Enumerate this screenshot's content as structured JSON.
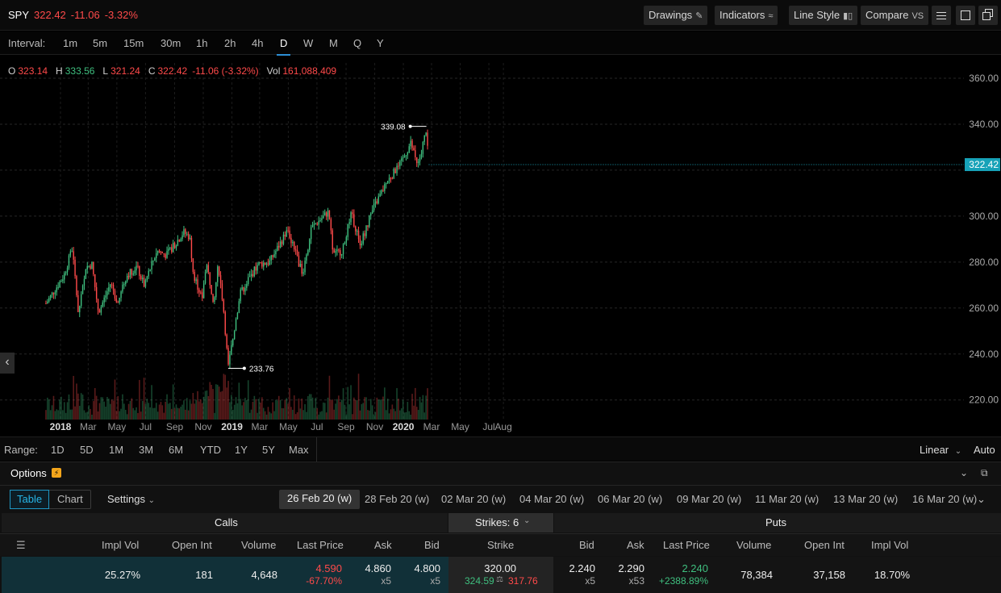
{
  "quote": {
    "symbol": "SPY",
    "price": "322.42",
    "change": "-11.06",
    "change_pct": "-3.32%"
  },
  "toolbar": {
    "drawings": "Drawings",
    "indicators": "Indicators",
    "line_style": "Line Style",
    "compare": "Compare",
    "compare_suffix": "VS"
  },
  "interval": {
    "label": "Interval:",
    "options": [
      "1m",
      "5m",
      "15m",
      "30m",
      "1h",
      "2h",
      "4h",
      "D",
      "W",
      "M",
      "Q",
      "Y"
    ],
    "active": "D"
  },
  "ohlc": {
    "o_key": "O",
    "o": "323.14",
    "h_key": "H",
    "h": "333.56",
    "l_key": "L",
    "l": "321.24",
    "c_key": "C",
    "c": "322.42",
    "chg": "-11.06 (-3.32%)",
    "vol_key": "Vol",
    "vol": "161,088,409"
  },
  "chart_data": {
    "type": "candlestick",
    "symbol": "SPY",
    "y_axis_ticks": [
      "360.00",
      "340.00",
      "300.00",
      "280.00",
      "260.00",
      "240.00",
      "220.00"
    ],
    "ylim": [
      214,
      364
    ],
    "x_axis_labels": [
      "2018",
      "Mar",
      "May",
      "Jul",
      "Sep",
      "Nov",
      "2019",
      "Mar",
      "May",
      "Jul",
      "Sep",
      "Nov",
      "2020",
      "Mar",
      "May",
      "Jul",
      "Aug"
    ],
    "close_path": [
      [
        "2017-12-01",
        262
      ],
      [
        "2017-12-20",
        268
      ],
      [
        "2018-01-08",
        274
      ],
      [
        "2018-01-26",
        286
      ],
      [
        "2018-02-08",
        258
      ],
      [
        "2018-02-26",
        278
      ],
      [
        "2018-03-09",
        279
      ],
      [
        "2018-03-23",
        258
      ],
      [
        "2018-04-18",
        271
      ],
      [
        "2018-05-03",
        262
      ],
      [
        "2018-05-21",
        274
      ],
      [
        "2018-06-12",
        278
      ],
      [
        "2018-06-28",
        270
      ],
      [
        "2018-07-25",
        285
      ],
      [
        "2018-08-15",
        283
      ],
      [
        "2018-09-20",
        293
      ],
      [
        "2018-10-03",
        291
      ],
      [
        "2018-10-11",
        275
      ],
      [
        "2018-10-29",
        264
      ],
      [
        "2018-11-07",
        280
      ],
      [
        "2018-11-23",
        263
      ],
      [
        "2018-12-03",
        279
      ],
      [
        "2018-12-14",
        260
      ],
      [
        "2018-12-24",
        234
      ],
      [
        "2019-01-18",
        266
      ],
      [
        "2019-02-25",
        279
      ],
      [
        "2019-03-22",
        280
      ],
      [
        "2019-04-30",
        294
      ],
      [
        "2019-05-31",
        275
      ],
      [
        "2019-06-20",
        295
      ],
      [
        "2019-07-26",
        302
      ],
      [
        "2019-08-05",
        283
      ],
      [
        "2019-08-23",
        285
      ],
      [
        "2019-09-12",
        301
      ],
      [
        "2019-10-02",
        288
      ],
      [
        "2019-10-28",
        303
      ],
      [
        "2019-11-27",
        315
      ],
      [
        "2019-12-27",
        323
      ],
      [
        "2020-01-17",
        332
      ],
      [
        "2020-01-31",
        321
      ],
      [
        "2020-02-19",
        338
      ],
      [
        "2020-02-24",
        322
      ]
    ],
    "annotations": [
      {
        "label": "339.08",
        "date": "2020-02-19",
        "value": 339.08,
        "type": "high"
      },
      {
        "label": "233.76",
        "date": "2018-12-24",
        "value": 233.76,
        "type": "low"
      }
    ],
    "last_price": "322.42"
  },
  "range": {
    "label": "Range:",
    "options": [
      "1D",
      "5D",
      "1M",
      "3M",
      "6M",
      "YTD",
      "1Y",
      "5Y",
      "Max"
    ],
    "scale": "Linear",
    "auto": "Auto"
  },
  "options": {
    "title": "Options",
    "tabs": [
      "Table",
      "Chart"
    ],
    "settings": "Settings",
    "dates": [
      "26 Feb 20 (w)",
      "28 Feb 20 (w)",
      "02 Mar 20 (w)",
      "04 Mar 20 (w)",
      "06 Mar 20 (w)",
      "09 Mar 20 (w)",
      "11 Mar 20 (w)",
      "13 Mar 20 (w)",
      "16 Mar 20 (w)"
    ],
    "calls_label": "Calls",
    "strikes_label": "Strikes: 6",
    "puts_label": "Puts",
    "call_columns": [
      "Impl Vol",
      "Open Int",
      "Volume",
      "Last Price",
      "Ask",
      "Bid"
    ],
    "strike_column": "Strike",
    "put_columns": [
      "Bid",
      "Ask",
      "Last Price",
      "Volume",
      "Open Int",
      "Impl Vol"
    ],
    "row": {
      "call_iv": "25.27%",
      "call_oi": "181",
      "call_vol": "4,648",
      "call_last": "4.590",
      "call_last_chg": "-67.70%",
      "call_ask": "4.860",
      "call_ask_size": "x5",
      "call_bid": "4.800",
      "call_bid_size": "x5",
      "strike": "320.00",
      "strike_high": "324.59",
      "strike_low": "317.76",
      "put_bid": "2.240",
      "put_bid_size": "x5",
      "put_ask": "2.290",
      "put_ask_size": "x53",
      "put_last": "2.240",
      "put_last_chg": "+2388.89%",
      "put_vol": "78,384",
      "put_oi": "37,158",
      "put_iv": "18.70%"
    }
  },
  "colors": {
    "up": "#3fbf7f",
    "down": "#ff4a4a",
    "accent": "#27b5e6",
    "last_price_tag": "#17a2b8"
  }
}
